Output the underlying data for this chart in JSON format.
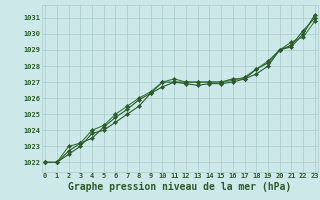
{
  "bg_color": "#cce8e8",
  "grid_color": "#aacccc",
  "line_color_dark": "#2d5a2d",
  "line_color_mid": "#3a7a3a",
  "line_color_light": "#4d9a4d",
  "xlabel": "Graphe pression niveau de la mer (hPa)",
  "xlabel_fontsize": 7.0,
  "ylabel_ticks": [
    1022,
    1023,
    1024,
    1025,
    1026,
    1027,
    1028,
    1029,
    1030,
    1031
  ],
  "xlim": [
    -0.3,
    23.3
  ],
  "ylim": [
    1021.4,
    1031.8
  ],
  "xticks": [
    0,
    1,
    2,
    3,
    4,
    5,
    6,
    7,
    8,
    9,
    10,
    11,
    12,
    13,
    14,
    15,
    16,
    17,
    18,
    19,
    20,
    21,
    22,
    23
  ],
  "series1_x": [
    0,
    1,
    2,
    3,
    4,
    5,
    6,
    7,
    8,
    9,
    10,
    11,
    12,
    13,
    14,
    15,
    16,
    17,
    18,
    19,
    20,
    21,
    22,
    23
  ],
  "series1_y": [
    1022.0,
    1022.0,
    1022.7,
    1023.2,
    1023.5,
    1024.2,
    1024.8,
    1025.3,
    1025.9,
    1026.3,
    1027.0,
    1027.0,
    1027.0,
    1027.0,
    1027.0,
    1027.0,
    1027.2,
    1027.2,
    1027.5,
    1028.0,
    1029.0,
    1029.2,
    1030.0,
    1031.2
  ],
  "series2_x": [
    0,
    1,
    2,
    3,
    4,
    5,
    6,
    7,
    8,
    9,
    10,
    11,
    12,
    13,
    14,
    15,
    16,
    17,
    18,
    19,
    20,
    21,
    22,
    23
  ],
  "series2_y": [
    1022.0,
    1022.0,
    1023.0,
    1023.2,
    1024.0,
    1024.3,
    1025.0,
    1025.5,
    1026.0,
    1026.4,
    1027.0,
    1027.2,
    1027.0,
    1027.0,
    1027.0,
    1027.0,
    1027.1,
    1027.3,
    1027.8,
    1028.3,
    1029.0,
    1029.5,
    1029.8,
    1030.8
  ],
  "series3_x": [
    0,
    1,
    2,
    3,
    4,
    5,
    6,
    7,
    8,
    9,
    10,
    11,
    12,
    13,
    14,
    15,
    16,
    17,
    18,
    19,
    20,
    21,
    22,
    23
  ],
  "series3_y": [
    1022.0,
    1022.0,
    1022.5,
    1023.0,
    1023.8,
    1024.0,
    1024.5,
    1025.0,
    1025.5,
    1026.3,
    1026.7,
    1027.0,
    1026.9,
    1026.8,
    1026.9,
    1026.9,
    1027.0,
    1027.2,
    1027.8,
    1028.2,
    1029.0,
    1029.3,
    1030.2,
    1031.0
  ]
}
